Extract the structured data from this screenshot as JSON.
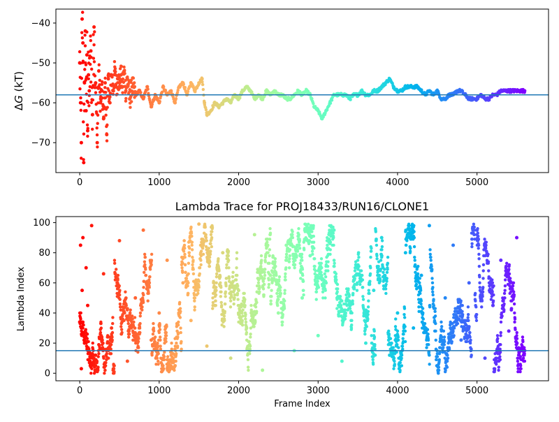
{
  "chart_data": [
    {
      "type": "scatter",
      "title": "",
      "xlabel": "",
      "ylabel": "ΔG (kT)",
      "ylabel_symbol": "Δ",
      "ylabel_var": "G",
      "ylabel_unit": " (kT)",
      "xlim": [
        -300,
        5900
      ],
      "ylim": [
        -77.5,
        -36.5
      ],
      "xticks": [
        0,
        1000,
        2000,
        3000,
        4000,
        5000
      ],
      "yticks": [
        -70,
        -60,
        -50,
        -40
      ],
      "hline": -58,
      "hline_color": "#1f77b4",
      "colormap": "rainbow (red at frame 0 → violet at last frame)",
      "n_frames": 5600,
      "trace_points": [
        [
          0,
          -50
        ],
        [
          10,
          -60
        ],
        [
          20,
          -70
        ],
        [
          30,
          -39
        ],
        [
          40,
          -45
        ],
        [
          50,
          -75
        ],
        [
          60,
          -55
        ],
        [
          70,
          -42
        ],
        [
          80,
          -62
        ],
        [
          90,
          -48
        ],
        [
          100,
          -67
        ],
        [
          110,
          -53
        ],
        [
          120,
          -57
        ],
        [
          140,
          -47
        ],
        [
          160,
          -63
        ],
        [
          180,
          -41
        ],
        [
          200,
          -55
        ],
        [
          220,
          -70
        ],
        [
          240,
          -52
        ],
        [
          260,
          -60
        ],
        [
          280,
          -57
        ],
        [
          300,
          -64
        ],
        [
          320,
          -55
        ],
        [
          340,
          -68
        ],
        [
          360,
          -54
        ],
        [
          380,
          -60
        ],
        [
          400,
          -53
        ],
        [
          420,
          -57
        ],
        [
          440,
          -52
        ],
        [
          460,
          -56
        ],
        [
          480,
          -54
        ],
        [
          500,
          -55
        ],
        [
          520,
          -53
        ],
        [
          540,
          -56
        ],
        [
          560,
          -52
        ],
        [
          580,
          -57
        ],
        [
          600,
          -54
        ],
        [
          630,
          -59
        ],
        [
          660,
          -56
        ],
        [
          700,
          -58
        ],
        [
          750,
          -57
        ],
        [
          800,
          -59
        ],
        [
          850,
          -56
        ],
        [
          900,
          -61
        ],
        [
          950,
          -58
        ],
        [
          1000,
          -60
        ],
        [
          1050,
          -56
        ],
        [
          1100,
          -58
        ],
        [
          1150,
          -57
        ],
        [
          1200,
          -60
        ],
        [
          1250,
          -56
        ],
        [
          1300,
          -55
        ],
        [
          1350,
          -58
        ],
        [
          1400,
          -55
        ],
        [
          1450,
          -57
        ],
        [
          1500,
          -55
        ],
        [
          1540,
          -54
        ],
        [
          1570,
          -60
        ],
        [
          1600,
          -63
        ],
        [
          1650,
          -62
        ],
        [
          1700,
          -60
        ],
        [
          1750,
          -61
        ],
        [
          1800,
          -60
        ],
        [
          1850,
          -59
        ],
        [
          1900,
          -60
        ],
        [
          1950,
          -58
        ],
        [
          2000,
          -59
        ],
        [
          2050,
          -57
        ],
        [
          2100,
          -56
        ],
        [
          2150,
          -57
        ],
        [
          2200,
          -59
        ],
        [
          2250,
          -58
        ],
        [
          2300,
          -59
        ],
        [
          2350,
          -57
        ],
        [
          2400,
          -58
        ],
        [
          2450,
          -57
        ],
        [
          2500,
          -58
        ],
        [
          2550,
          -58
        ],
        [
          2600,
          -59
        ],
        [
          2650,
          -59
        ],
        [
          2700,
          -58
        ],
        [
          2750,
          -57
        ],
        [
          2800,
          -58
        ],
        [
          2850,
          -57
        ],
        [
          2900,
          -58
        ],
        [
          2950,
          -61
        ],
        [
          3000,
          -62
        ],
        [
          3050,
          -64
        ],
        [
          3100,
          -62
        ],
        [
          3150,
          -60
        ],
        [
          3200,
          -58
        ],
        [
          3250,
          -58
        ],
        [
          3300,
          -58
        ],
        [
          3350,
          -58
        ],
        [
          3400,
          -59
        ],
        [
          3450,
          -58
        ],
        [
          3500,
          -58
        ],
        [
          3550,
          -57
        ],
        [
          3600,
          -58
        ],
        [
          3650,
          -58
        ],
        [
          3700,
          -57
        ],
        [
          3750,
          -57
        ],
        [
          3800,
          -56
        ],
        [
          3850,
          -55
        ],
        [
          3900,
          -54
        ],
        [
          3950,
          -56
        ],
        [
          4000,
          -57
        ],
        [
          4050,
          -57
        ],
        [
          4100,
          -56
        ],
        [
          4150,
          -56
        ],
        [
          4200,
          -56
        ],
        [
          4250,
          -56
        ],
        [
          4300,
          -57
        ],
        [
          4350,
          -58
        ],
        [
          4400,
          -57
        ],
        [
          4450,
          -58
        ],
        [
          4500,
          -57
        ],
        [
          4550,
          -59
        ],
        [
          4600,
          -59
        ],
        [
          4650,
          -58
        ],
        [
          4700,
          -58
        ],
        [
          4750,
          -57
        ],
        [
          4800,
          -57
        ],
        [
          4850,
          -58
        ],
        [
          4900,
          -59
        ],
        [
          4950,
          -59
        ],
        [
          5000,
          -59
        ],
        [
          5050,
          -58
        ],
        [
          5100,
          -59
        ],
        [
          5150,
          -59
        ],
        [
          5200,
          -58
        ],
        [
          5250,
          -58
        ],
        [
          5300,
          -57
        ],
        [
          5350,
          -57
        ],
        [
          5400,
          -57
        ],
        [
          5450,
          -57
        ],
        [
          5500,
          -57
        ],
        [
          5550,
          -57
        ],
        [
          5600,
          -57
        ]
      ]
    },
    {
      "type": "scatter",
      "title": "Lambda Trace for PROJ18433/RUN16/CLONE1",
      "xlabel": "Frame Index",
      "ylabel": "Lambda Index",
      "xlim": [
        -300,
        5900
      ],
      "ylim": [
        -5,
        104
      ],
      "xticks": [
        0,
        1000,
        2000,
        3000,
        4000,
        5000
      ],
      "yticks": [
        0,
        20,
        40,
        60,
        80,
        100
      ],
      "hline": 15,
      "hline_color": "#1f77b4",
      "colormap": "rainbow (red at frame 0 → violet at last frame)",
      "n_frames": 5600,
      "lambda_range": [
        0,
        99
      ],
      "sample_points": [
        [
          0,
          34
        ],
        [
          10,
          85
        ],
        [
          20,
          3
        ],
        [
          30,
          55
        ],
        [
          40,
          90
        ],
        [
          60,
          20
        ],
        [
          80,
          70
        ],
        [
          100,
          45
        ],
        [
          150,
          98
        ],
        [
          200,
          12
        ],
        [
          300,
          66
        ],
        [
          400,
          30
        ],
        [
          500,
          88
        ],
        [
          600,
          8
        ],
        [
          700,
          50
        ],
        [
          800,
          95
        ],
        [
          900,
          22
        ],
        [
          1000,
          40
        ],
        [
          1100,
          75
        ],
        [
          1200,
          5
        ],
        [
          1300,
          60
        ],
        [
          1400,
          35
        ],
        [
          1500,
          99
        ],
        [
          1600,
          18
        ],
        [
          1700,
          45
        ],
        [
          1800,
          80
        ],
        [
          1900,
          10
        ],
        [
          2000,
          55
        ],
        [
          2100,
          30
        ],
        [
          2200,
          92
        ],
        [
          2300,
          2
        ],
        [
          2400,
          65
        ],
        [
          2500,
          40
        ],
        [
          2600,
          85
        ],
        [
          2700,
          15
        ],
        [
          2800,
          50
        ],
        [
          2900,
          78
        ],
        [
          3000,
          25
        ],
        [
          3100,
          60
        ],
        [
          3200,
          95
        ],
        [
          3300,
          8
        ],
        [
          3400,
          45
        ],
        [
          3500,
          70
        ],
        [
          3600,
          20
        ],
        [
          3700,
          55
        ],
        [
          3800,
          90
        ],
        [
          3900,
          12
        ],
        [
          4000,
          40
        ],
        [
          4100,
          80
        ],
        [
          4200,
          30
        ],
        [
          4300,
          65
        ],
        [
          4400,
          98
        ],
        [
          4500,
          5
        ],
        [
          4600,
          50
        ],
        [
          4700,
          85
        ],
        [
          4800,
          22
        ],
        [
          4900,
          60
        ],
        [
          5000,
          95
        ],
        [
          5100,
          10
        ],
        [
          5200,
          45
        ],
        [
          5300,
          75
        ],
        [
          5400,
          28
        ],
        [
          5500,
          90
        ],
        [
          5600,
          15
        ]
      ]
    }
  ]
}
